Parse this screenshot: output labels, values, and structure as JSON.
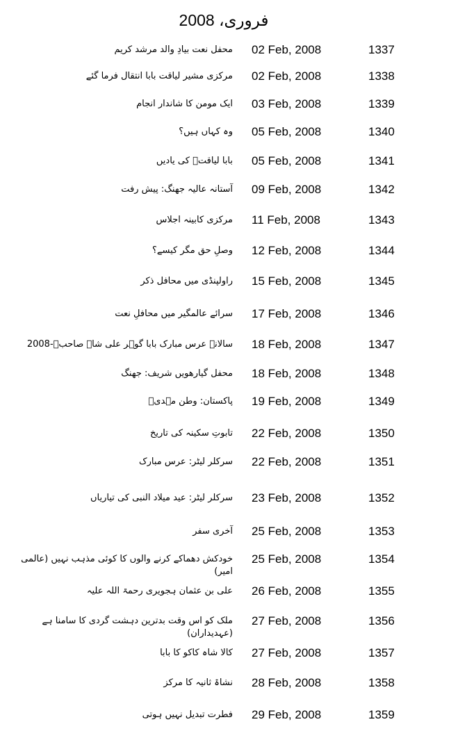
{
  "title": "فروری، 2008",
  "rows": [
    {
      "title": "محفل نعت بیادِ والد مرشد کریم",
      "date": "02 Feb, 2008",
      "number": "1337"
    },
    {
      "title": "مرکزی مشیر لیاقت بابا انتقال فرما گئے",
      "date": "02 Feb, 2008",
      "number": "1338"
    },
    {
      "title": "ایک مومن کا شاندار انجام",
      "date": "03 Feb, 2008",
      "number": "1339"
    },
    {
      "title": "وہ کہاں ہیں؟",
      "date": "05 Feb, 2008",
      "number": "1340"
    },
    {
      "title": "بابا لیاقتؒ کی یادیں",
      "date": "05 Feb, 2008",
      "number": "1341"
    },
    {
      "title": "آستانہ عالیہ جھنگ: پیش رفت",
      "date": "09 Feb, 2008",
      "number": "1342"
    },
    {
      "title": "مرکزی کابینہ اجلاس",
      "date": "11 Feb, 2008",
      "number": "1343"
    },
    {
      "title": "وصلِ حق مگر کیسے؟",
      "date": "12 Feb, 2008",
      "number": "1344"
    },
    {
      "title": "راولپنڈی میں محافل ذکر",
      "date": "15 Feb, 2008",
      "number": "1345"
    },
    {
      "title": "سرائے عالمگیر میں محافلِ نعت",
      "date": "17 Feb, 2008",
      "number": "1346"
    },
    {
      "title": "سالانہ عرس مبارک بابا گوہر علی شاہ صاحبؒ-2008",
      "date": "18 Feb, 2008",
      "number": "1347"
    },
    {
      "title": "محفل گیارھویں شریف: جھنگ",
      "date": "18 Feb, 2008",
      "number": "1348"
    },
    {
      "title": "پاکستان: وطن مہدیؑ",
      "date": "19 Feb, 2008",
      "number": "1349"
    },
    {
      "title": "تابوتِ سکینہ کی تاریخ",
      "date": "22 Feb, 2008",
      "number": "1350"
    },
    {
      "title": "سرکلر لیٹر: عرس مبارک",
      "date": "22 Feb, 2008",
      "number": "1351"
    },
    {
      "title": "سرکلر لیٹر: عید میلاد النبی کی تیاریاں",
      "date": "23 Feb, 2008",
      "number": "1352"
    },
    {
      "title": "آخری سفر",
      "date": "25 Feb, 2008",
      "number": "1353"
    },
    {
      "title": "خودکش دھماکے کرنے والوں کا کوئی مذہب نہیں (عالمی امیر)",
      "date": "25 Feb, 2008",
      "number": "1354"
    },
    {
      "title": "علی بن عثمان ہجویری رحمۃ اللہ علیہ",
      "date": "26 Feb, 2008",
      "number": "1355"
    },
    {
      "title": "ملک کو اس وقت بدترین دہشت گردی کا سامنا ہے (عہدیداران)",
      "date": "27 Feb, 2008",
      "number": "1356"
    },
    {
      "title": "کالا شاہ کاکو کا بابا",
      "date": "27 Feb, 2008",
      "number": "1357"
    },
    {
      "title": "نشاۃ ثانیہ کا مرکز",
      "date": "28 Feb, 2008",
      "number": "1358"
    },
    {
      "title": "فطرت تبدیل نہیں ہوتی",
      "date": "29 Feb, 2008",
      "number": "1359"
    }
  ]
}
